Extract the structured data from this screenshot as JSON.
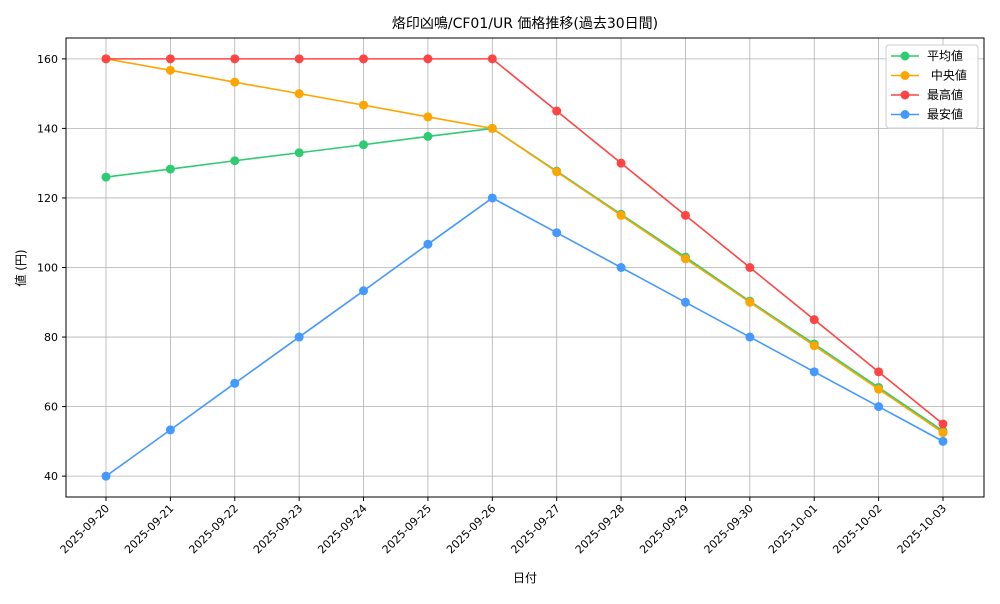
{
  "chart_data": {
    "type": "line",
    "title": "烙印凶鳴/CF01/UR 価格推移(過去30日間)",
    "xlabel": "日付",
    "ylabel": "値 (円)",
    "ylim": [
      34,
      166
    ],
    "yticks": [
      40,
      60,
      80,
      100,
      120,
      140,
      160
    ],
    "grid": true,
    "legend_position": "top-right",
    "categories": [
      "2025-09-20",
      "2025-09-21",
      "2025-09-22",
      "2025-09-23",
      "2025-09-24",
      "2025-09-25",
      "2025-09-26",
      "2025-09-27",
      "2025-09-28",
      "2025-09-29",
      "2025-09-30",
      "2025-10-01",
      "2025-10-02",
      "2025-10-03"
    ],
    "series": [
      {
        "name": "平均値",
        "color": "#2ecc71",
        "values": [
          126,
          128.3,
          130.7,
          133,
          135.3,
          137.7,
          140,
          127.7,
          115.3,
          103,
          90.3,
          78,
          65.5,
          53
        ]
      },
      {
        "name": " 中央値",
        "color": "#ffa500",
        "values": [
          160,
          156.7,
          153.3,
          150,
          146.7,
          143.3,
          140,
          127.5,
          115,
          102.5,
          90,
          77.5,
          65,
          52.5
        ]
      },
      {
        "name": "最高値",
        "color": "#ff4444",
        "values": [
          160,
          160,
          160,
          160,
          160,
          160,
          160,
          145,
          130,
          115,
          100,
          85,
          70,
          55
        ]
      },
      {
        "name": "最安値",
        "color": "#4499ff",
        "values": [
          40,
          53.3,
          66.7,
          80,
          93.3,
          106.7,
          120,
          110,
          100,
          90,
          80,
          70,
          60,
          50
        ]
      }
    ]
  }
}
